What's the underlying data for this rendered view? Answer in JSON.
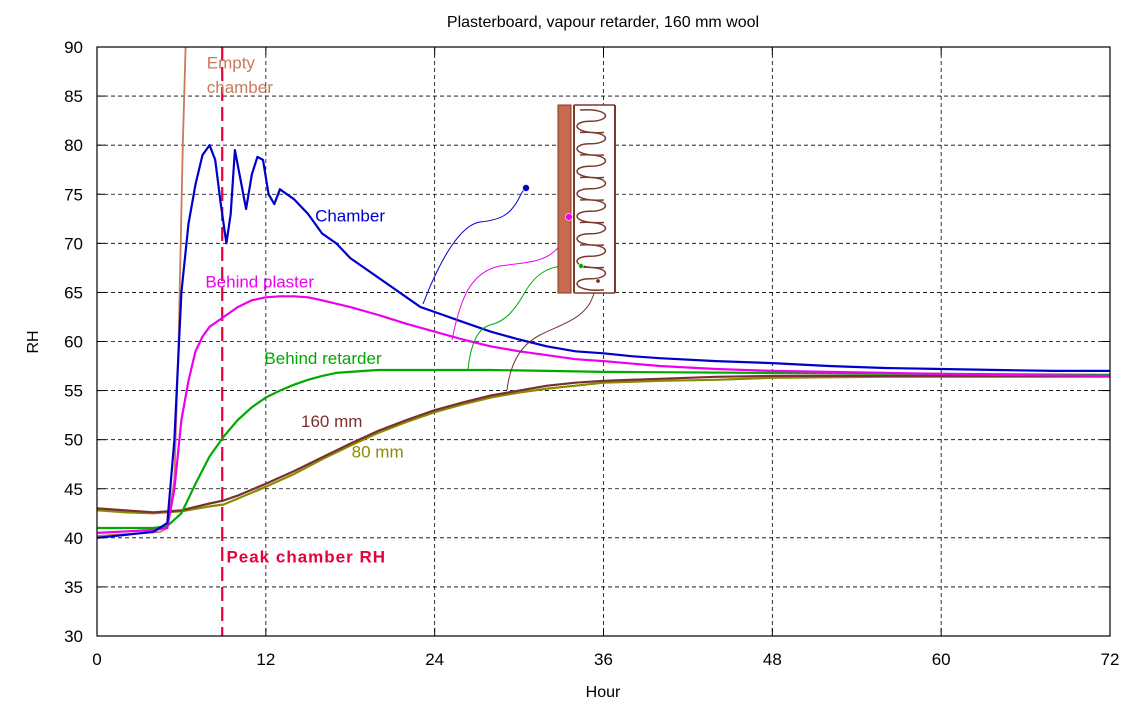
{
  "chart_data": {
    "type": "line",
    "title": "Plasterboard, vapour retarder, 160 mm wool",
    "xlabel": "Hour",
    "ylabel": "RH",
    "xlim": [
      0,
      72
    ],
    "ylim": [
      30,
      90
    ],
    "xticks": [
      0,
      12,
      24,
      36,
      48,
      60,
      72
    ],
    "yticks": [
      30,
      35,
      40,
      45,
      50,
      55,
      60,
      65,
      70,
      75,
      80,
      85,
      90
    ],
    "grid": true,
    "legend": "none",
    "series": [
      {
        "name": "Empty chamber",
        "color": "#c87a5a",
        "x": [
          0,
          4.5,
          5,
          5.5,
          5.8,
          6.1,
          6.3
        ],
        "y": [
          40.2,
          40.6,
          41,
          46,
          60,
          80,
          90
        ]
      },
      {
        "name": "Chamber",
        "color": "#0000cc",
        "x": [
          0,
          2,
          4,
          5,
          5.5,
          6,
          6.5,
          7,
          7.5,
          8,
          8.4,
          8.8,
          9.2,
          9.5,
          9.8,
          10.2,
          10.6,
          11,
          11.4,
          11.8,
          12.2,
          12.6,
          13,
          14,
          15,
          16,
          17,
          18,
          19,
          20,
          21,
          22,
          23,
          24,
          26,
          28,
          30,
          32,
          34,
          36,
          38,
          40,
          44,
          48,
          52,
          56,
          60,
          64,
          68,
          72
        ],
        "y": [
          40,
          40.3,
          40.6,
          41.5,
          50,
          65,
          72,
          76,
          79,
          80,
          78.5,
          74,
          70,
          73,
          79.5,
          76.5,
          73.5,
          77,
          78.8,
          78.5,
          75,
          74,
          75.5,
          74.5,
          73,
          71,
          70,
          68.5,
          67.5,
          66.5,
          65.5,
          64.5,
          63.5,
          63,
          62,
          61,
          60.2,
          59.5,
          59,
          58.8,
          58.5,
          58.3,
          58,
          57.8,
          57.5,
          57.3,
          57.2,
          57.1,
          57,
          57
        ]
      },
      {
        "name": "Behind plaster",
        "color": "#ee00ee",
        "x": [
          0,
          4,
          5,
          5.5,
          6,
          6.5,
          7,
          7.5,
          8,
          9,
          10,
          11,
          12,
          13,
          14,
          15,
          16,
          18,
          20,
          22,
          24,
          26,
          28,
          30,
          32,
          34,
          36,
          40,
          44,
          48,
          56,
          64,
          72
        ],
        "y": [
          40.5,
          40.8,
          41,
          45,
          52,
          56,
          59,
          60.5,
          61.5,
          62.5,
          63.5,
          64.2,
          64.5,
          64.6,
          64.6,
          64.5,
          64.2,
          63.5,
          62.7,
          61.8,
          61,
          60.2,
          59.5,
          59,
          58.6,
          58.2,
          58,
          57.5,
          57.2,
          57,
          56.8,
          56.6,
          56.5
        ]
      },
      {
        "name": "Behind retarder",
        "color": "#00aa00",
        "x": [
          0,
          4,
          5,
          6,
          7,
          8,
          9,
          10,
          11,
          12,
          13,
          14,
          15,
          16,
          17,
          18,
          19,
          20,
          22,
          24,
          28,
          32,
          36,
          48,
          60,
          72
        ],
        "y": [
          41,
          41,
          41.2,
          42.5,
          45.5,
          48.3,
          50.3,
          52,
          53.3,
          54.3,
          55,
          55.6,
          56.1,
          56.5,
          56.8,
          56.9,
          57,
          57.1,
          57.1,
          57.1,
          57.1,
          57,
          56.9,
          56.8,
          56.7,
          56.6
        ]
      },
      {
        "name": "160 mm",
        "color": "#7a3030",
        "x": [
          0,
          2,
          4,
          6,
          8,
          9,
          10,
          12,
          14,
          16,
          18,
          20,
          22,
          24,
          26,
          28,
          30,
          32,
          34,
          36,
          40,
          44,
          48,
          56,
          64,
          72
        ],
        "y": [
          43,
          42.8,
          42.6,
          42.8,
          43.5,
          43.8,
          44.3,
          45.5,
          46.8,
          48.2,
          49.6,
          50.9,
          52,
          53,
          53.8,
          54.5,
          55,
          55.5,
          55.8,
          56,
          56.2,
          56.4,
          56.5,
          56.5,
          56.5,
          56.5
        ]
      },
      {
        "name": "80 mm",
        "color": "#8a8a00",
        "x": [
          0,
          2,
          4,
          6,
          8,
          9,
          10,
          12,
          14,
          16,
          18,
          20,
          22,
          24,
          26,
          28,
          30,
          32,
          34,
          36,
          40,
          44,
          48,
          56,
          64,
          72
        ],
        "y": [
          42.8,
          42.6,
          42.5,
          42.7,
          43.2,
          43.4,
          44,
          45.2,
          46.5,
          48,
          49.4,
          50.7,
          51.8,
          52.8,
          53.6,
          54.3,
          54.8,
          55.2,
          55.5,
          55.8,
          56,
          56.1,
          56.3,
          56.4,
          56.4,
          56.4
        ]
      }
    ],
    "annotations": [
      {
        "text": "Empty",
        "x": 7.8,
        "y": 87.8,
        "color": "#c87a5a"
      },
      {
        "text": "chamber",
        "x": 7.8,
        "y": 85.3,
        "color": "#c87a5a"
      },
      {
        "text": "Chamber",
        "x": 15.5,
        "y": 72.2,
        "color": "#0000cc"
      },
      {
        "text": "Behind plaster",
        "x": 7.7,
        "y": 65.5,
        "color": "#ee00ee"
      },
      {
        "text": "Behind retarder",
        "x": 11.9,
        "y": 57.7,
        "color": "#00aa00"
      },
      {
        "text": "160 mm",
        "x": 14.5,
        "y": 51.3,
        "color": "#7a3030"
      },
      {
        "text": "80 mm",
        "x": 18.1,
        "y": 48.2,
        "color": "#8a8a00"
      },
      {
        "text": "Peak chamber RH",
        "x": 9.2,
        "y": 37.5,
        "color": "#e8003a"
      }
    ],
    "peak_marker": {
      "x": 8.9,
      "color": "#e8003a"
    }
  }
}
